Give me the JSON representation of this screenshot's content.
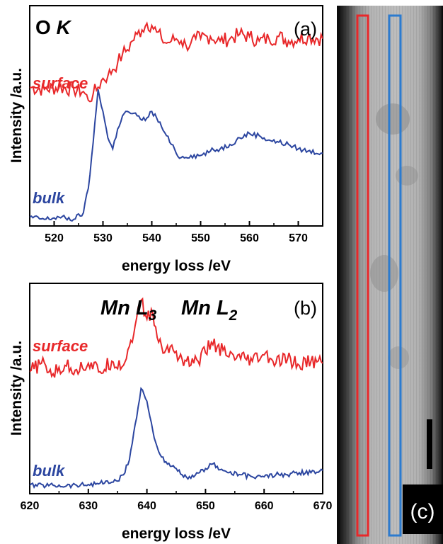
{
  "colors": {
    "surface": "#e8282a",
    "bulk": "#2c46a0",
    "axis": "#000000"
  },
  "panel_c": {
    "label": "(c)"
  },
  "chart_data": [
    {
      "type": "line",
      "panel_label": "(a)",
      "title_prefix": "O",
      "title_italic": "K",
      "xlabel": "energy loss /eV",
      "ylabel": "Intensity /a.u.",
      "xlim": [
        515,
        575
      ],
      "ylim": [
        0,
        1
      ],
      "xticks": [
        "520",
        "530",
        "540",
        "550",
        "560",
        "570"
      ],
      "series": [
        {
          "name": "surface",
          "color": "#e8282a",
          "x": [
            515,
            518,
            521,
            524,
            526,
            527,
            528,
            529,
            530,
            531,
            532,
            533,
            534,
            535,
            536,
            537,
            538,
            539,
            540,
            541,
            542,
            543,
            544,
            545,
            546,
            547,
            548,
            549,
            550,
            552,
            554,
            556,
            558,
            560,
            562,
            564,
            566,
            568,
            570,
            572,
            575
          ],
          "y": [
            0.63,
            0.62,
            0.63,
            0.62,
            0.61,
            0.57,
            0.6,
            0.63,
            0.67,
            0.68,
            0.71,
            0.74,
            0.78,
            0.8,
            0.84,
            0.87,
            0.89,
            0.92,
            0.91,
            0.88,
            0.85,
            0.83,
            0.84,
            0.85,
            0.84,
            0.82,
            0.83,
            0.85,
            0.85,
            0.86,
            0.84,
            0.85,
            0.87,
            0.86,
            0.84,
            0.85,
            0.86,
            0.84,
            0.85,
            0.86,
            0.85
          ]
        },
        {
          "name": "bulk",
          "color": "#2c46a0",
          "x": [
            515,
            518,
            521,
            524,
            526,
            527,
            528,
            529,
            530,
            531,
            532,
            533,
            534,
            535,
            536,
            537,
            538,
            539,
            540,
            541,
            542,
            543,
            544,
            545,
            546,
            548,
            550,
            552,
            554,
            556,
            558,
            560,
            562,
            564,
            566,
            568,
            570,
            572,
            575
          ],
          "y": [
            0.04,
            0.03,
            0.04,
            0.03,
            0.06,
            0.17,
            0.38,
            0.62,
            0.52,
            0.4,
            0.35,
            0.44,
            0.5,
            0.52,
            0.51,
            0.5,
            0.48,
            0.49,
            0.52,
            0.49,
            0.45,
            0.41,
            0.37,
            0.33,
            0.31,
            0.32,
            0.32,
            0.34,
            0.35,
            0.37,
            0.4,
            0.42,
            0.41,
            0.39,
            0.38,
            0.37,
            0.35,
            0.34,
            0.33
          ]
        }
      ],
      "annotations": [
        {
          "text": "surface",
          "color": "#e8282a"
        },
        {
          "text": "bulk",
          "color": "#2c46a0"
        }
      ]
    },
    {
      "type": "line",
      "panel_label": "(b)",
      "xlabel": "energy loss /eV",
      "ylabel": "Intensity /a.u.",
      "xlim": [
        620,
        670
      ],
      "ylim": [
        0,
        1
      ],
      "xticks": [
        "620",
        "630",
        "640",
        "650",
        "660",
        "670"
      ],
      "peak_labels": [
        {
          "element": "Mn",
          "edge": "L",
          "sub": "3"
        },
        {
          "element": "Mn",
          "edge": "L",
          "sub": "2"
        }
      ],
      "series": [
        {
          "name": "surface",
          "color": "#e8282a",
          "x": [
            620,
            622,
            624,
            626,
            628,
            630,
            632,
            634,
            636,
            637,
            638,
            639,
            640,
            641,
            642,
            643,
            644,
            646,
            648,
            650,
            651,
            652,
            654,
            656,
            658,
            660,
            662,
            664,
            666,
            668,
            670
          ],
          "y": [
            0.58,
            0.62,
            0.57,
            0.61,
            0.59,
            0.62,
            0.58,
            0.63,
            0.61,
            0.7,
            0.8,
            0.92,
            0.83,
            0.86,
            0.72,
            0.67,
            0.7,
            0.64,
            0.62,
            0.67,
            0.72,
            0.7,
            0.65,
            0.64,
            0.63,
            0.66,
            0.62,
            0.64,
            0.61,
            0.63,
            0.62
          ]
        },
        {
          "name": "bulk",
          "color": "#2c46a0",
          "x": [
            620,
            624,
            628,
            632,
            635,
            636,
            637,
            638,
            639,
            640,
            641,
            642,
            643,
            644,
            645,
            646,
            647,
            648,
            649,
            650,
            651,
            652,
            653,
            654,
            656,
            658,
            660,
            662,
            664,
            666,
            668,
            670
          ],
          "y": [
            0.04,
            0.04,
            0.04,
            0.05,
            0.06,
            0.09,
            0.16,
            0.33,
            0.5,
            0.44,
            0.3,
            0.2,
            0.15,
            0.13,
            0.12,
            0.09,
            0.07,
            0.08,
            0.1,
            0.12,
            0.14,
            0.13,
            0.11,
            0.1,
            0.09,
            0.08,
            0.08,
            0.09,
            0.09,
            0.1,
            0.1,
            0.11
          ]
        }
      ],
      "annotations": [
        {
          "text": "surface",
          "color": "#e8282a"
        },
        {
          "text": "bulk",
          "color": "#2c46a0"
        }
      ]
    }
  ]
}
